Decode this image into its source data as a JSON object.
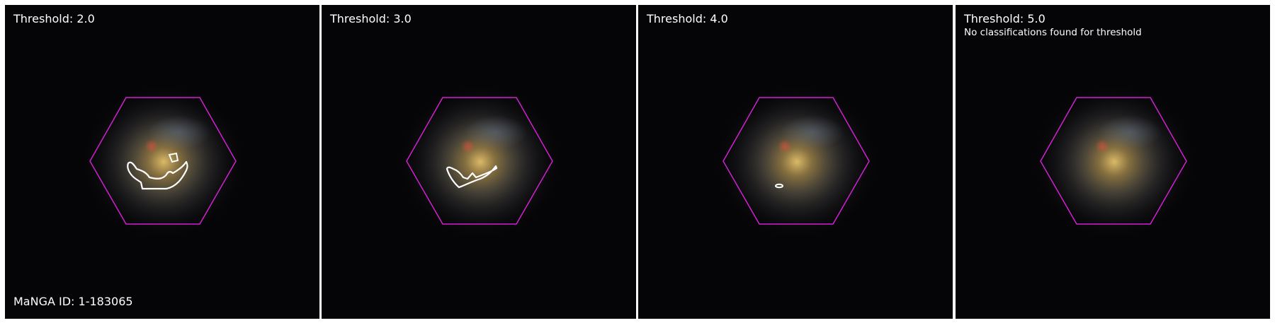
{
  "panels": [
    {
      "title": "Threshold: 2.0",
      "note": "",
      "label": "MaNGA ID: 1-183065"
    },
    {
      "title": "Threshold: 3.0",
      "note": "",
      "label": ""
    },
    {
      "title": "Threshold: 4.0",
      "note": "",
      "label": ""
    },
    {
      "title": "Threshold: 5.0",
      "note": "No classifications found for threshold",
      "label": ""
    }
  ],
  "colors": {
    "ifu_hexagon": "#d21fd2",
    "contour": "#ffffff",
    "sky": "#050406"
  }
}
